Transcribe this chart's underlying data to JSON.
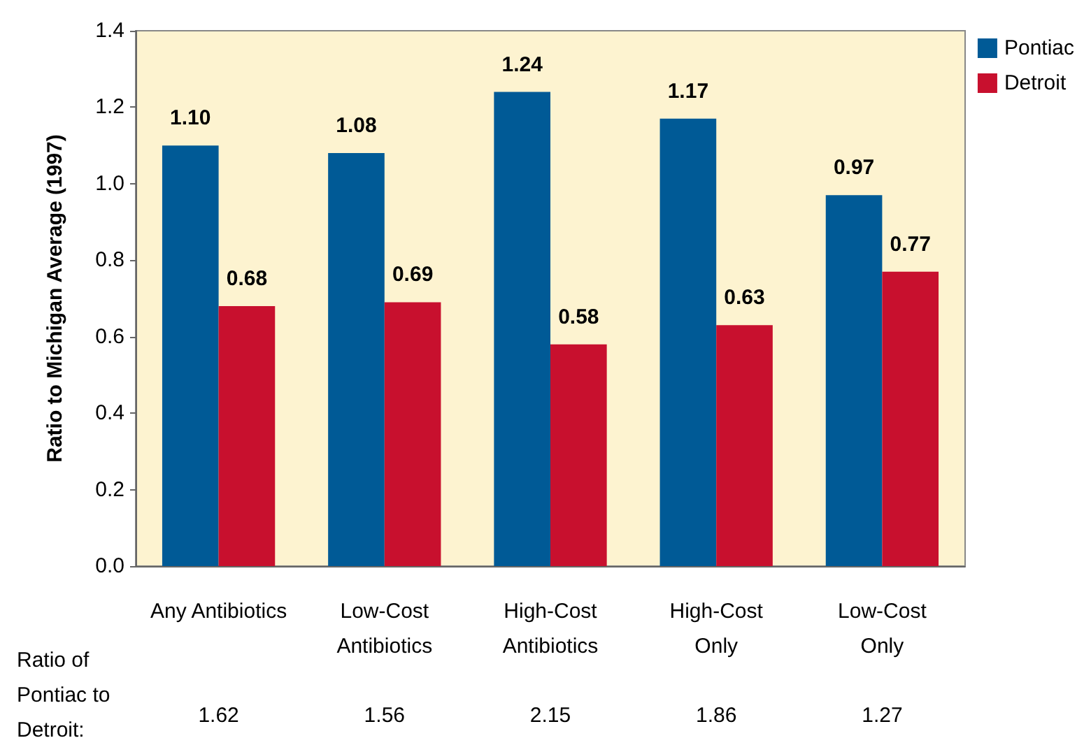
{
  "chart_data": {
    "type": "bar",
    "ylabel": "Ratio to Michigan Average (1997)",
    "categories": [
      "Any Antibiotics",
      "Low-Cost\nAntibiotics",
      "High-Cost\nAntibiotics",
      "High-Cost\nOnly",
      "Low-Cost\nOnly"
    ],
    "series": [
      {
        "name": "Pontiac",
        "color": "#005a96",
        "values": [
          1.1,
          1.08,
          1.24,
          1.17,
          0.97
        ],
        "value_labels": [
          "1.10",
          "1.08",
          "1.24",
          "1.17",
          "0.97"
        ]
      },
      {
        "name": "Detroit",
        "color": "#c8102e",
        "values": [
          0.68,
          0.69,
          0.58,
          0.63,
          0.77
        ],
        "value_labels": [
          "0.68",
          "0.69",
          "0.58",
          "0.63",
          "0.77"
        ]
      }
    ],
    "ylim": [
      0,
      1.4
    ],
    "yticks": [
      {
        "value": 0,
        "label": "0.0"
      },
      {
        "value": 0.2,
        "label": "0.2"
      },
      {
        "value": 0.4,
        "label": "0.4"
      },
      {
        "value": 0.6,
        "label": "0.6"
      },
      {
        "value": 0.8,
        "label": "0.8"
      },
      {
        "value": 1,
        "label": "1.0"
      },
      {
        "value": 1.2,
        "label": "1.2"
      },
      {
        "value": 1.4,
        "label": "1.4"
      }
    ],
    "grid": false,
    "legend": "top right",
    "annotations": [
      "Ratio of\nPontiac to\nDetroit:",
      "1.62",
      "1.56",
      "2.15",
      "1.86",
      "1.27"
    ]
  }
}
